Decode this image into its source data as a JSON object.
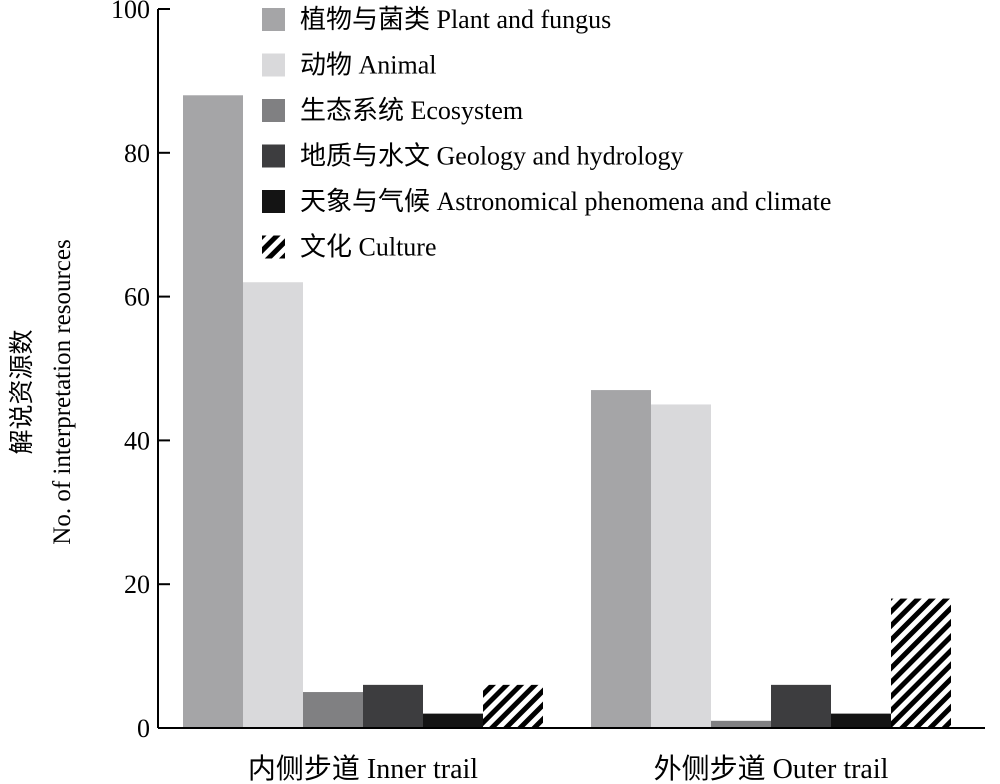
{
  "chart_data": {
    "type": "bar",
    "ylabel_cn": "解说资源数",
    "ylabel_en": "No. of interpretation resources",
    "ylim": [
      0,
      100
    ],
    "yticks": [
      0,
      20,
      40,
      60,
      80,
      100
    ],
    "categories": [
      "内侧步道 Inner trail",
      "外侧步道 Outer trail"
    ],
    "series": [
      {
        "name": "植物与菌类 Plant and fungus",
        "values": [
          88,
          47
        ],
        "color": "#a5a5a7",
        "pattern": "solid"
      },
      {
        "name": "动物 Animal",
        "values": [
          62,
          45
        ],
        "color": "#d9d9db",
        "pattern": "solid"
      },
      {
        "name": "生态系统 Ecosystem",
        "values": [
          5,
          1
        ],
        "color": "#808082",
        "pattern": "solid"
      },
      {
        "name": "地质与水文 Geology and hydrology",
        "values": [
          6,
          6
        ],
        "color": "#3d3d3f",
        "pattern": "solid"
      },
      {
        "name": "天象与气候 Astronomical phenomena and climate",
        "values": [
          2,
          2
        ],
        "color": "#141414",
        "pattern": "solid"
      },
      {
        "name": "文化 Culture",
        "values": [
          6,
          18
        ],
        "color": "#000000",
        "pattern": "hatch"
      }
    ],
    "grid": false,
    "legend_position": "top-right"
  }
}
